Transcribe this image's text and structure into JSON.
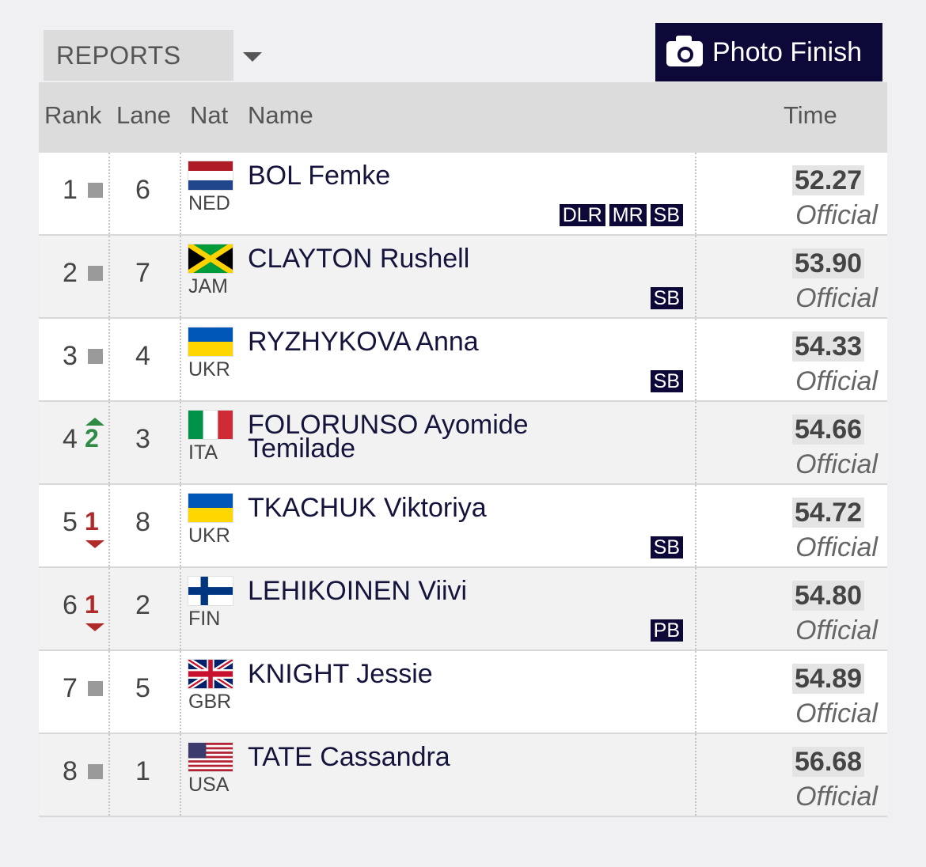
{
  "toolbar": {
    "reports_label": "REPORTS",
    "photo_finish_label": "Photo Finish"
  },
  "columns": {
    "rank": "Rank",
    "lane": "Lane",
    "nat": "Nat",
    "name": "Name",
    "time": "Time"
  },
  "rows": [
    {
      "rank": "1",
      "change": "",
      "change_dir": "none",
      "lane": "6",
      "nat": "NED",
      "flag": "netherlands-flag",
      "name": "BOL Femke",
      "badges": [
        "DLR",
        "MR",
        "SB"
      ],
      "time": "52.27",
      "status": "Official"
    },
    {
      "rank": "2",
      "change": "",
      "change_dir": "none",
      "lane": "7",
      "nat": "JAM",
      "flag": "jamaica-flag",
      "name": "CLAYTON Rushell",
      "badges": [
        "SB"
      ],
      "time": "53.90",
      "status": "Official"
    },
    {
      "rank": "3",
      "change": "",
      "change_dir": "none",
      "lane": "4",
      "nat": "UKR",
      "flag": "ukraine-flag",
      "name": "RYZHYKOVA Anna",
      "badges": [
        "SB"
      ],
      "time": "54.33",
      "status": "Official"
    },
    {
      "rank": "4",
      "change": "2",
      "change_dir": "up",
      "lane": "3",
      "nat": "ITA",
      "flag": "italy-flag",
      "name_line1": "FOLORUNSO Ayomide",
      "name_line2": "Temilade",
      "badges": [],
      "time": "54.66",
      "status": "Official"
    },
    {
      "rank": "5",
      "change": "1",
      "change_dir": "down",
      "lane": "8",
      "nat": "UKR",
      "flag": "ukraine-flag",
      "name": "TKACHUK Viktoriya",
      "badges": [
        "SB"
      ],
      "time": "54.72",
      "status": "Official"
    },
    {
      "rank": "6",
      "change": "1",
      "change_dir": "down",
      "lane": "2",
      "nat": "FIN",
      "flag": "finland-flag",
      "name": "LEHIKOINEN Viivi",
      "badges": [
        "PB"
      ],
      "time": "54.80",
      "status": "Official"
    },
    {
      "rank": "7",
      "change": "",
      "change_dir": "none",
      "lane": "5",
      "nat": "GBR",
      "flag": "uk-flag",
      "name": "KNIGHT Jessie",
      "badges": [],
      "time": "54.89",
      "status": "Official"
    },
    {
      "rank": "8",
      "change": "",
      "change_dir": "none",
      "lane": "1",
      "nat": "USA",
      "flag": "usa-flag",
      "name": "TATE Cassandra",
      "badges": [],
      "time": "56.68",
      "status": "Official"
    }
  ],
  "colors": {
    "navy": "#0c0838",
    "up": "#2e8b45",
    "down": "#b02a2a"
  }
}
